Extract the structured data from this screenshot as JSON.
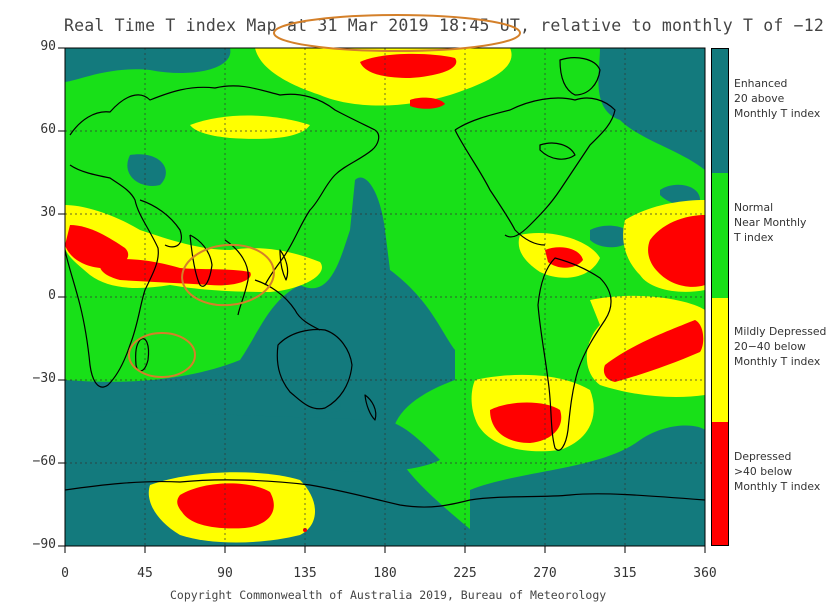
{
  "title": "Real Time T index Map at 31 Mar 2019 18:45 UT, relative to monthly T of −12",
  "y_ticks": [
    "90",
    "60",
    "30",
    "0",
    "−30",
    "−60",
    "−90"
  ],
  "x_ticks": [
    "0",
    "45",
    "90",
    "135",
    "180",
    "225",
    "270",
    "315",
    "360"
  ],
  "copyright": "Copyright Commonwealth of Australia 2019, Bureau of Meteorology",
  "legend": [
    {
      "text": "Enhanced\n20 above\nMonthly T index",
      "color": "#137a7d"
    },
    {
      "text": "Normal\nNear Monthly\nT index",
      "color": "#18e018"
    },
    {
      "text": "Mildly Depressed\n20−40 below\nMonthly T index",
      "color": "#ffff00"
    },
    {
      "text": "Depressed\n>40 below\nMonthly T index",
      "color": "#ff0000"
    }
  ],
  "colors": {
    "enhanced": "#137a7d",
    "normal": "#18e018",
    "mild": "#ffff00",
    "depressed": "#ff0000",
    "annotation": "#d4802a"
  }
}
